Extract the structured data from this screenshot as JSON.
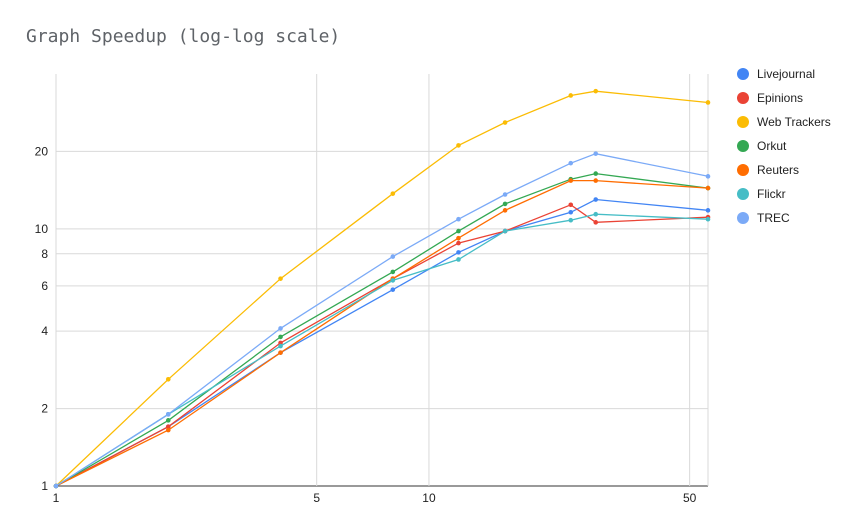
{
  "chart_data": {
    "type": "line",
    "title": "Graph Speedup (log-log scale)",
    "xlabel": "",
    "ylabel": "",
    "xscale": "log",
    "yscale": "log",
    "xlim": [
      1,
      56
    ],
    "ylim": [
      1,
      40
    ],
    "x_ticks": [
      1,
      5,
      10,
      50
    ],
    "y_ticks": [
      1,
      2,
      4,
      6,
      8,
      10,
      20
    ],
    "grid": true,
    "legend_position": "right",
    "x": [
      1,
      2,
      4,
      8,
      12,
      16,
      24,
      28,
      56
    ],
    "series": [
      {
        "name": "Livejournal",
        "color": "#4285f4",
        "values": [
          1,
          1.7,
          3.3,
          5.8,
          8.1,
          9.8,
          11.6,
          13.0,
          11.8
        ]
      },
      {
        "name": "Epinions",
        "color": "#ea4335",
        "values": [
          1,
          1.7,
          3.6,
          6.4,
          8.8,
          9.8,
          12.4,
          10.6,
          11.1
        ]
      },
      {
        "name": "Web Trackers",
        "color": "#fbbc04",
        "values": [
          1,
          2.6,
          6.4,
          13.7,
          21.1,
          25.9,
          33.0,
          34.3,
          31.0
        ]
      },
      {
        "name": "Orkut",
        "color": "#34a853",
        "values": [
          1,
          1.8,
          3.8,
          6.8,
          9.8,
          12.5,
          15.6,
          16.4,
          14.4
        ]
      },
      {
        "name": "Reuters",
        "color": "#ff6d01",
        "values": [
          1,
          1.65,
          3.3,
          6.4,
          9.2,
          11.8,
          15.4,
          15.4,
          14.4
        ]
      },
      {
        "name": "Flickr",
        "color": "#46bdc6",
        "values": [
          1,
          1.9,
          3.5,
          6.3,
          7.6,
          9.8,
          10.8,
          11.4,
          10.9
        ]
      },
      {
        "name": "TREC",
        "color": "#7baaf7",
        "values": [
          1,
          1.9,
          4.1,
          7.8,
          10.9,
          13.6,
          18.0,
          19.6,
          16.0
        ]
      }
    ]
  }
}
